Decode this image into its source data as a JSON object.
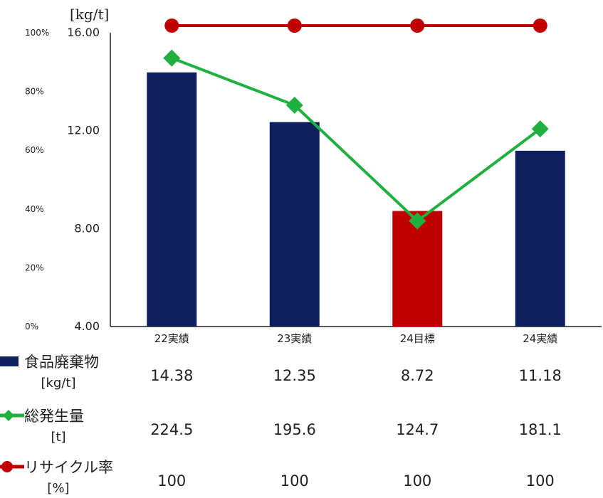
{
  "chart_data": {
    "type": "bar",
    "primary_axis_unit": "[kg/t]",
    "primary_ylim": [
      4.0,
      16.0
    ],
    "primary_ticks": [
      "16.00",
      "12.00",
      "8.00",
      "4.00"
    ],
    "percent_ylim": [
      0,
      100
    ],
    "percent_ticks": [
      "100%",
      "80%",
      "60%",
      "40%",
      "20%",
      "0%"
    ],
    "categories": [
      "22実績",
      "23実績",
      "24目標",
      "24実績"
    ],
    "series": [
      {
        "name": "食品廃棄物",
        "unit": "[kg/t]",
        "type": "bar",
        "values": [
          14.38,
          12.35,
          8.72,
          11.18
        ],
        "colors": [
          "#0d1f5c",
          "#0d1f5c",
          "#c00000",
          "#0d1f5c"
        ]
      },
      {
        "name": "総発生量",
        "unit": "[t]",
        "type": "line",
        "marker": "diamond",
        "color": "#1fb040",
        "values": [
          224.5,
          195.6,
          124.7,
          181.1
        ]
      },
      {
        "name": "リサイクル率",
        "unit": "[%]",
        "type": "line",
        "marker": "circle",
        "color": "#c00000",
        "values": [
          100,
          100,
          100,
          100
        ]
      }
    ],
    "table": {
      "rows": [
        {
          "label": "食品廃棄物",
          "unit": "[kg/t]",
          "values": [
            "14.38",
            "12.35",
            "8.72",
            "11.18"
          ]
        },
        {
          "label": "総発生量",
          "unit": "[t]",
          "values": [
            "224.5",
            "195.6",
            "124.7",
            "181.1"
          ]
        },
        {
          "label": "リサイクル率",
          "unit": "[%]",
          "values": [
            "100",
            "100",
            "100",
            "100"
          ]
        }
      ]
    }
  }
}
